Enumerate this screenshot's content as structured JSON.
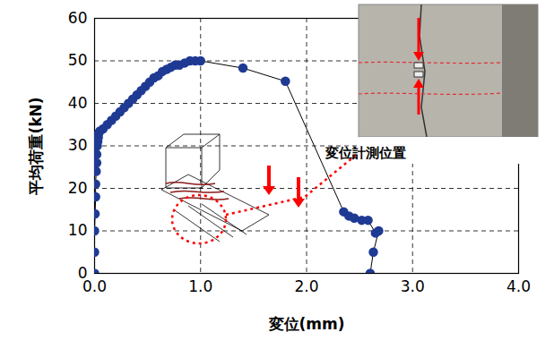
{
  "chart_data": {
    "type": "line",
    "x_label": "変位(mm)",
    "y_label": "平均荷重(kN)",
    "x": [
      0.0,
      0.0,
      0.0,
      0.005,
      0.01,
      0.01,
      0.015,
      0.02,
      0.02,
      0.025,
      0.03,
      0.035,
      0.04,
      0.05,
      0.08,
      0.12,
      0.16,
      0.2,
      0.24,
      0.28,
      0.32,
      0.36,
      0.4,
      0.44,
      0.48,
      0.52,
      0.56,
      0.6,
      0.64,
      0.68,
      0.72,
      0.76,
      0.8,
      0.85,
      0.9,
      0.95,
      1.0,
      1.4,
      1.8,
      2.35,
      2.4,
      2.45,
      2.52,
      2.58,
      2.65,
      2.68,
      2.63,
      2.6
    ],
    "values": [
      0,
      5,
      10,
      14,
      18,
      21,
      24,
      26,
      28,
      30,
      31,
      32,
      33,
      33.5,
      34,
      35,
      36,
      37,
      38,
      39,
      40,
      41,
      42,
      43,
      44,
      45,
      46,
      46.5,
      47.5,
      48,
      48.5,
      49,
      49,
      49.5,
      50,
      50,
      50,
      48.3,
      45.2,
      14.5,
      13.5,
      13,
      12.5,
      12.5,
      9.5,
      10,
      5,
      0
    ],
    "color": "#1f3a93",
    "marker": "circle",
    "line_style": "solid",
    "xlim": [
      0,
      4
    ],
    "ylim": [
      0,
      60
    ],
    "xticks": [
      {
        "value": 0,
        "label": "0.0"
      },
      {
        "value": 1,
        "label": "1.0"
      },
      {
        "value": 2,
        "label": "2.0"
      },
      {
        "value": 3,
        "label": "3.0"
      },
      {
        "value": 4,
        "label": "4.0"
      }
    ],
    "yticks": [
      0,
      10,
      20,
      30,
      40,
      50,
      60
    ],
    "grid": true,
    "annotations": [
      "変位計測位置"
    ]
  }
}
